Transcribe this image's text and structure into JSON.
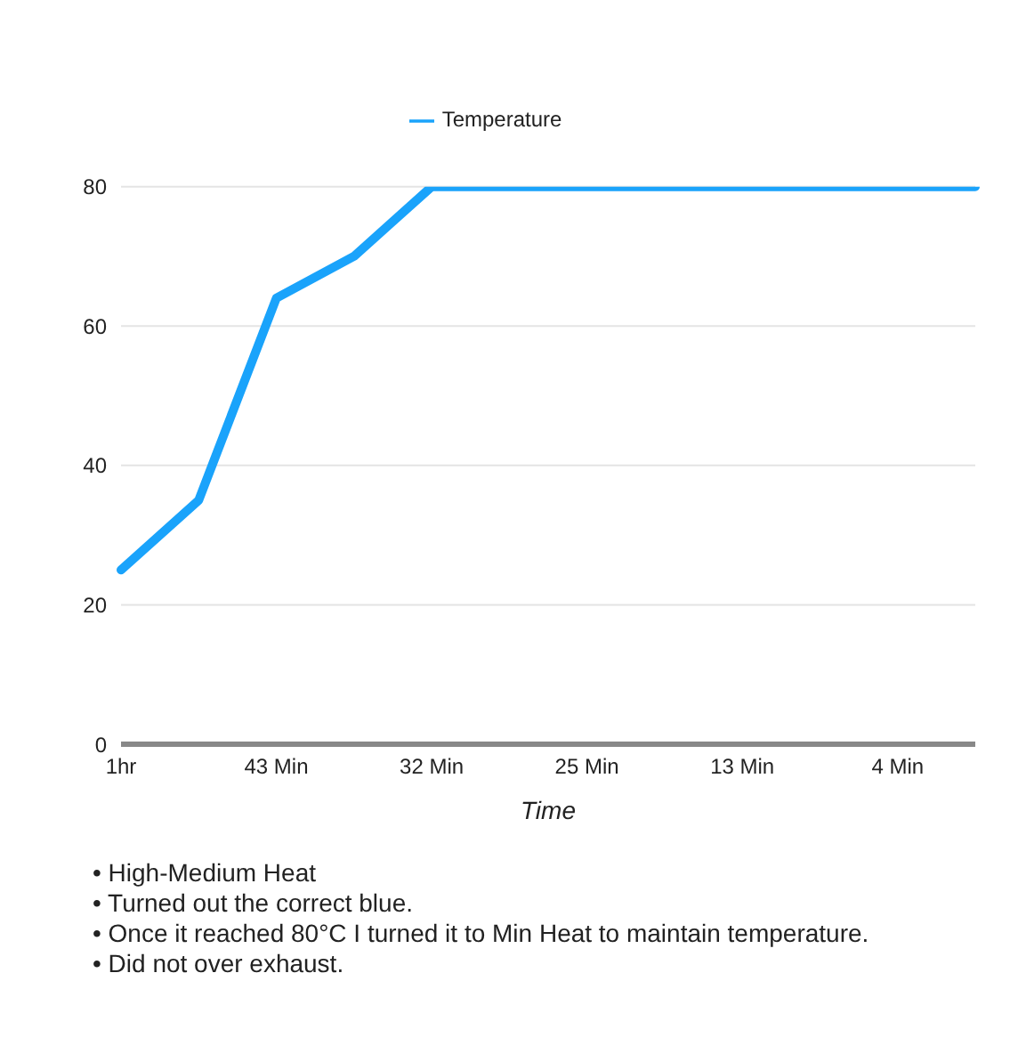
{
  "chart_data": {
    "type": "line",
    "xlabel": "Time",
    "categories": [
      "1hr",
      null,
      "43 Min",
      null,
      "32 Min",
      null,
      "25 Min",
      null,
      "13 Min",
      null,
      "4 Min",
      null
    ],
    "series": [
      {
        "name": "Temperature",
        "color": "#1aa3fb",
        "values": [
          25,
          35,
          64,
          70,
          80,
          80,
          80,
          80,
          80,
          80,
          80,
          80
        ]
      }
    ],
    "ylim": [
      0,
      80
    ],
    "yticks": [
      0,
      20,
      40,
      60,
      80
    ],
    "grid": "y",
    "legend": "top",
    "marker": "none",
    "line_style": "solid",
    "annotations": [
      "• High-Medium Heat",
      "• Turned out the correct blue.",
      "• Once it reached 80°C I turned it to Min Heat to maintain temperature.",
      "• Did not over exhaust."
    ]
  }
}
